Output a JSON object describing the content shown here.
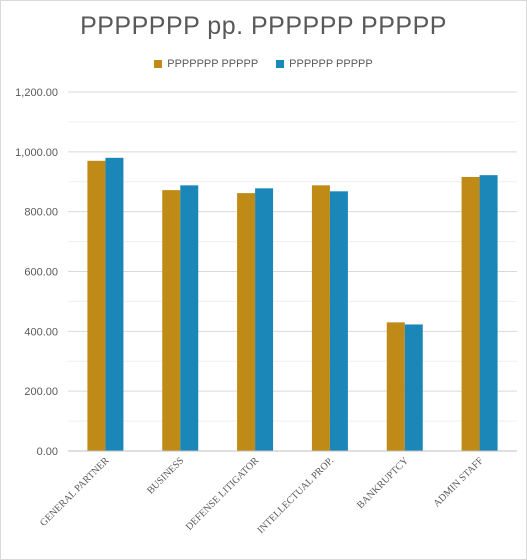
{
  "chart_data": {
    "type": "bar",
    "title": "PPPPPPP pp. PPPPPP PPPPP",
    "categories": [
      "GENERAL PARTNER",
      "BUSINESS",
      "DEFENSE LITIGATOR",
      "INTELLECTUAL PROP.",
      "BANKRUPTCY",
      "ADMIN STAFF"
    ],
    "series": [
      {
        "name": "PPPPPPP PPPPP",
        "color": "#bf8a16",
        "values": [
          970,
          872,
          862,
          888,
          430,
          916
        ]
      },
      {
        "name": "PPPPPP PPPPP",
        "color": "#1b86b8",
        "values": [
          980,
          888,
          878,
          868,
          423,
          922
        ]
      }
    ],
    "ylim": [
      0,
      1200
    ],
    "yticks": [
      "0.00",
      "200.00",
      "400.00",
      "600.00",
      "800.00",
      "1,000.00",
      "1,200.00"
    ],
    "grid": true,
    "legend_position": "top"
  }
}
